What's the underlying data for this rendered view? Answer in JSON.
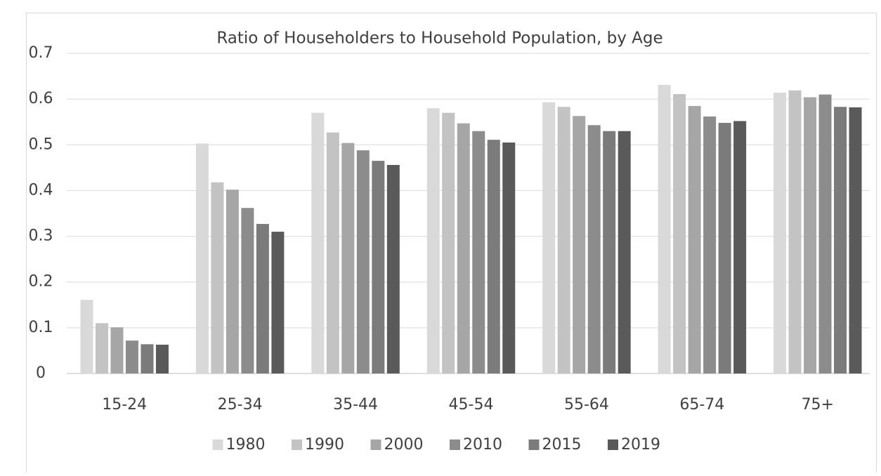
{
  "chart_data": {
    "type": "bar",
    "title": "Ratio of Householders to Household Population, by Age",
    "categories": [
      "15-24",
      "25-34",
      "35-44",
      "45-54",
      "55-64",
      "65-74",
      "75+"
    ],
    "series": [
      {
        "name": "1980",
        "color": "#d9d9d9",
        "values": [
          0.161,
          0.503,
          0.57,
          0.58,
          0.593,
          0.631,
          0.614
        ]
      },
      {
        "name": "1990",
        "color": "#c3c3c3",
        "values": [
          0.11,
          0.418,
          0.527,
          0.57,
          0.583,
          0.611,
          0.619
        ]
      },
      {
        "name": "2000",
        "color": "#a6a6a6",
        "values": [
          0.101,
          0.402,
          0.504,
          0.547,
          0.563,
          0.585,
          0.604
        ]
      },
      {
        "name": "2010",
        "color": "#8c8c8c",
        "values": [
          0.072,
          0.362,
          0.488,
          0.53,
          0.543,
          0.562,
          0.61
        ]
      },
      {
        "name": "2015",
        "color": "#7b7b7b",
        "values": [
          0.064,
          0.327,
          0.465,
          0.511,
          0.53,
          0.548,
          0.583
        ]
      },
      {
        "name": "2019",
        "color": "#5a5a5a",
        "values": [
          0.063,
          0.31,
          0.456,
          0.505,
          0.53,
          0.552,
          0.582
        ]
      }
    ],
    "ylim": [
      0,
      0.7
    ],
    "yticks": [
      0,
      0.1,
      0.2,
      0.3,
      0.4,
      0.5,
      0.6,
      0.7
    ],
    "grid": true,
    "legend": "bottom"
  }
}
